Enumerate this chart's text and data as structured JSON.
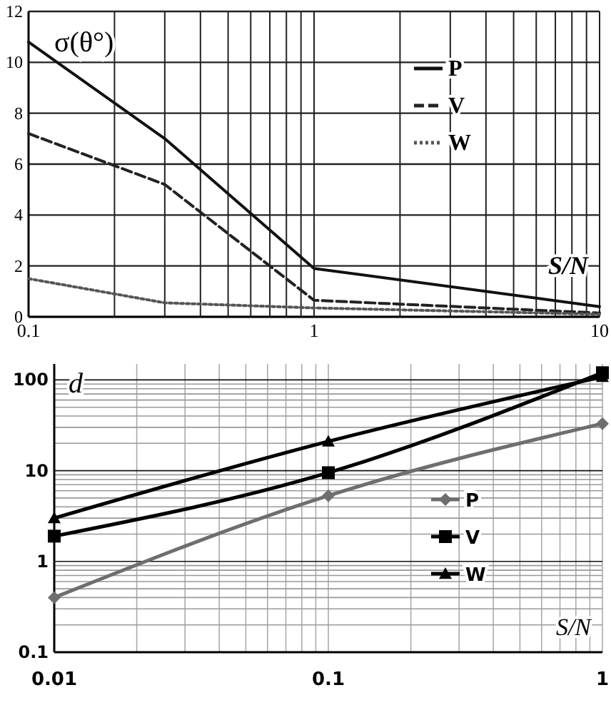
{
  "chart_data": [
    {
      "type": "line",
      "ylabel": "σ(θ°)",
      "xlabel": "S/N",
      "log": "x",
      "xlim": [
        0.1,
        10
      ],
      "ylim": [
        0,
        12
      ],
      "xticks": [
        0.1,
        1,
        10
      ],
      "yticks": [
        0,
        2,
        4,
        6,
        8,
        10,
        12
      ],
      "grid": true,
      "legend": "top right",
      "x": [
        0.1,
        0.3,
        1,
        10
      ],
      "series": [
        {
          "name": "P",
          "color": "#111111",
          "line_style": "solid",
          "values": [
            10.8,
            7.0,
            1.9,
            0.4
          ]
        },
        {
          "name": "V",
          "color": "#222222",
          "line_style": "dashed",
          "values": [
            7.2,
            5.2,
            0.65,
            0.15
          ]
        },
        {
          "name": "W",
          "color": "#555555",
          "line_style": "dotted",
          "values": [
            1.5,
            0.55,
            0.35,
            0.1
          ]
        }
      ]
    },
    {
      "type": "line",
      "ylabel": "d",
      "xlabel": "S/N",
      "log": "xy",
      "xlim": [
        0.01,
        1
      ],
      "ylim": [
        0.1,
        150
      ],
      "xticks": [
        0.01,
        0.1,
        1
      ],
      "yticks": [
        0.1,
        1,
        10,
        100
      ],
      "grid": true,
      "legend": "right",
      "x": [
        0.01,
        0.1,
        1
      ],
      "series": [
        {
          "name": "P",
          "color": "#6e6e6e",
          "marker": "diamond",
          "values": [
            0.4,
            5.3,
            33
          ]
        },
        {
          "name": "V",
          "color": "#000000",
          "marker": "square",
          "values": [
            1.9,
            9.5,
            120
          ]
        },
        {
          "name": "W",
          "color": "#000000",
          "marker": "triangle",
          "values": [
            3,
            21,
            108
          ]
        }
      ]
    }
  ]
}
